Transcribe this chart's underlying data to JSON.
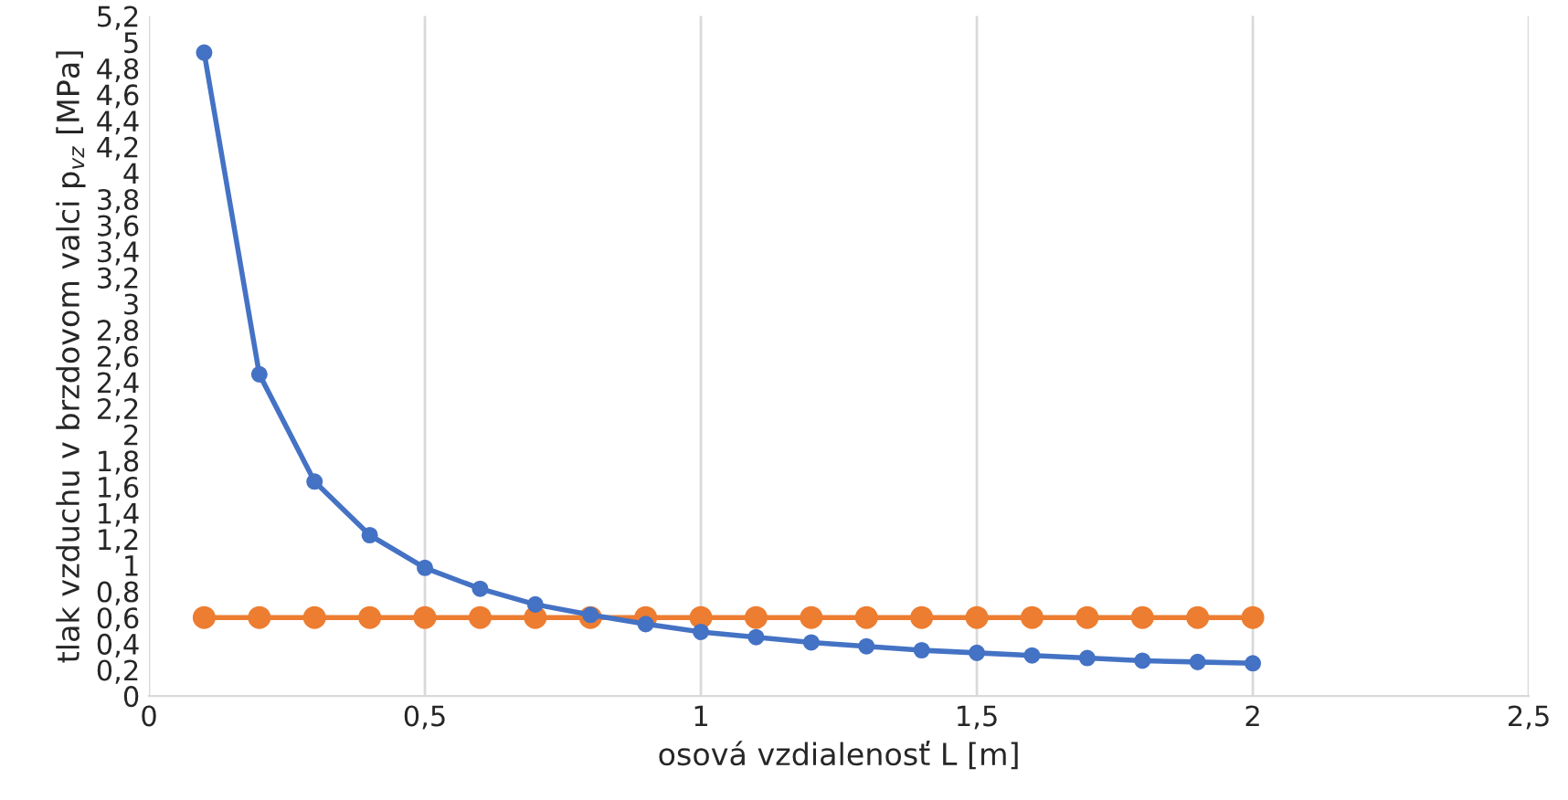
{
  "chart_data": {
    "type": "line",
    "xlabel": "osová vzdialenosť L [m]",
    "ylabel": "tlak vzduchu v brzdovom valci p$_{vz}$ [MPa]",
    "x": [
      0.1,
      0.2,
      0.3,
      0.4,
      0.5,
      0.6,
      0.7,
      0.8,
      0.9,
      1.0,
      1.1,
      1.2,
      1.3,
      1.4,
      1.5,
      1.6,
      1.7,
      1.8,
      1.9,
      2.0
    ],
    "series": [
      {
        "color": "#4472c4",
        "values": [
          4.92,
          2.46,
          1.64,
          1.23,
          0.98,
          0.82,
          0.7,
          0.62,
          0.55,
          0.49,
          0.45,
          0.41,
          0.38,
          0.35,
          0.33,
          0.31,
          0.29,
          0.27,
          0.26,
          0.25
        ]
      },
      {
        "color": "#ed7d31",
        "values": [
          0.6,
          0.6,
          0.6,
          0.6,
          0.6,
          0.6,
          0.6,
          0.6,
          0.6,
          0.6,
          0.6,
          0.6,
          0.6,
          0.6,
          0.6,
          0.6,
          0.6,
          0.6,
          0.6,
          0.6
        ]
      }
    ],
    "xlim": [
      0,
      2.5
    ],
    "xticks": [
      0,
      {
        "value": 0.5,
        "label": "0,5"
      },
      1,
      {
        "value": 1.5,
        "label": "1,5"
      },
      2,
      {
        "value": 2.5,
        "label": "2,5"
      }
    ],
    "ylim": [
      0,
      5.2
    ],
    "yticks": [
      0,
      {
        "value": 0.2,
        "label": "0,2"
      },
      {
        "value": 0.4,
        "label": "0,4"
      },
      {
        "value": 0.6,
        "label": "0,6"
      },
      {
        "value": 0.8,
        "label": "0,8"
      },
      1,
      {
        "value": 1.2,
        "label": "1,2"
      },
      {
        "value": 1.4,
        "label": "1,4"
      },
      {
        "value": 1.6,
        "label": "1,6"
      },
      {
        "value": 1.8,
        "label": "1,8"
      },
      2,
      {
        "value": 2.2,
        "label": "2,2"
      },
      {
        "value": 2.4,
        "label": "2,4"
      },
      {
        "value": 2.6,
        "label": "2,6"
      },
      {
        "value": 2.8,
        "label": "2,8"
      },
      3,
      {
        "value": 3.2,
        "label": "3,2"
      },
      {
        "value": 3.4,
        "label": "3,4"
      },
      {
        "value": 3.6,
        "label": "3,6"
      },
      {
        "value": 3.8,
        "label": "3,8"
      },
      4,
      {
        "value": 4.2,
        "label": "4,2"
      },
      {
        "value": 4.4,
        "label": "4,4"
      },
      {
        "value": 4.6,
        "label": "4,6"
      },
      {
        "value": 4.8,
        "label": "4,8"
      },
      5,
      {
        "value": 5.2,
        "label": "5,2"
      }
    ],
    "grid": "x",
    "marker": "circle",
    "line_style": "solid",
    "legend": false
  }
}
